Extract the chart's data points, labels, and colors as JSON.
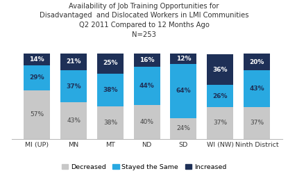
{
  "title_lines": [
    "Availability of Job Training Opportunities for",
    "Disadvantaged  and Dislocated Workers in LMI Communities",
    "Q2 2011 Compared to 12 Months Ago",
    "N=253"
  ],
  "categories": [
    "MI (UP)",
    "MN",
    "MT",
    "ND",
    "SD",
    "WI (NW)",
    "Ninth District"
  ],
  "decreased": [
    57,
    43,
    38,
    40,
    24,
    37,
    37
  ],
  "stayed_same": [
    29,
    37,
    38,
    44,
    64,
    26,
    43
  ],
  "increased": [
    14,
    21,
    25,
    16,
    12,
    36,
    20
  ],
  "decreased_labels": [
    "57%",
    "43%",
    "38%",
    "40%",
    "24%",
    "37%",
    "37%"
  ],
  "stayed_same_labels": [
    "29%",
    "37%",
    "38%",
    "44%",
    "64%",
    "26%",
    "43%"
  ],
  "increased_labels": [
    "14%",
    "21%",
    "25%",
    "16%",
    "12%",
    "36%",
    "20%"
  ],
  "color_decreased": "#c8c8c8",
  "color_stayed": "#29a9e1",
  "color_increased": "#1e3057",
  "legend_labels": [
    "Decreased",
    "Stayed the Same",
    "Increased"
  ],
  "bar_width": 0.72,
  "ylim": [
    0,
    100
  ],
  "title_fontsize": 7.2,
  "label_fontsize": 6.5,
  "legend_fontsize": 6.8,
  "axis_fontsize": 6.8
}
